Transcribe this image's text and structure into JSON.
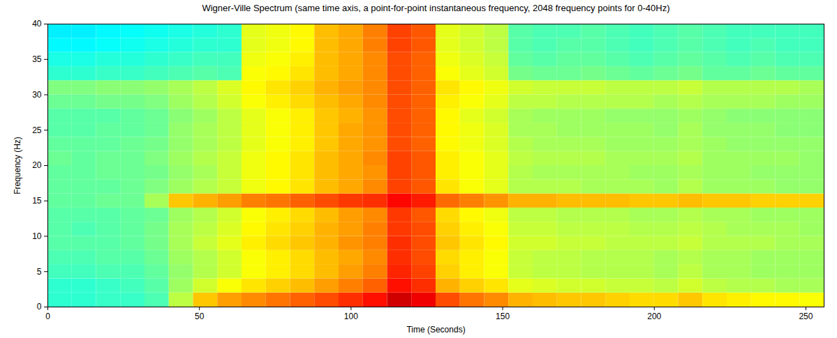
{
  "chart_data": {
    "type": "heatmap",
    "title": "Wigner-Ville Spectrum (same time axis, a point-for-point instantaneous frequency, 2048 frequency points for 0-40Hz)",
    "x_label": "Time (Seconds)",
    "y_label": "Frequency (Hz)",
    "xlim": [
      0,
      256
    ],
    "ylim": [
      0,
      40
    ],
    "xticks": [
      0,
      50,
      100,
      150,
      200,
      250
    ],
    "yticks": [
      0,
      5,
      10,
      15,
      20,
      25,
      30,
      35,
      40
    ],
    "grid": false,
    "x": [
      0,
      8,
      16,
      24,
      32,
      40,
      48,
      56,
      64,
      72,
      80,
      88,
      96,
      104,
      112,
      120,
      128,
      136,
      144,
      152,
      160,
      168,
      176,
      184,
      192,
      200,
      208,
      216,
      224,
      232,
      240,
      248
    ],
    "y": [
      0,
      2,
      4,
      6,
      8,
      10,
      12,
      14,
      16,
      18,
      20,
      22,
      24,
      26,
      28,
      30,
      32,
      34,
      36,
      38
    ],
    "zlim": [
      0,
      10
    ],
    "cells": [
      [
        4.2,
        4.2,
        4.3,
        4.3,
        4.5,
        5.6,
        6.8,
        7.2,
        7.4,
        7.6,
        7.8,
        8.0,
        8.3,
        8.6,
        9.2,
        8.9,
        8.0,
        7.6,
        7.4,
        7.0,
        6.9,
        6.8,
        6.8,
        6.7,
        6.6,
        6.6,
        6.8,
        6.5,
        6.4,
        6.3,
        6.3,
        6.2
      ],
      [
        4.2,
        4.2,
        4.3,
        4.4,
        4.6,
        5.3,
        5.8,
        6.2,
        6.5,
        6.7,
        6.9,
        7.2,
        7.5,
        7.8,
        8.6,
        8.3,
        7.0,
        6.7,
        6.5,
        6.0,
        5.9,
        5.8,
        5.8,
        5.7,
        5.7,
        5.6,
        5.8,
        5.6,
        5.5,
        5.5,
        5.4,
        5.4
      ],
      [
        4.4,
        4.4,
        4.5,
        4.5,
        4.7,
        5.2,
        5.5,
        5.8,
        6.2,
        6.4,
        6.6,
        6.9,
        7.2,
        7.5,
        8.4,
        8.1,
        6.7,
        6.4,
        6.2,
        5.7,
        5.6,
        5.6,
        5.5,
        5.5,
        5.5,
        5.4,
        5.6,
        5.4,
        5.4,
        5.3,
        5.3,
        5.3
      ],
      [
        4.5,
        4.5,
        4.6,
        4.6,
        4.8,
        5.3,
        5.5,
        5.8,
        6.2,
        6.4,
        6.6,
        6.9,
        7.1,
        7.4,
        8.3,
        8.0,
        6.6,
        6.4,
        6.2,
        5.7,
        5.6,
        5.6,
        5.5,
        5.5,
        5.5,
        5.4,
        5.5,
        5.4,
        5.4,
        5.3,
        5.3,
        5.3
      ],
      [
        4.6,
        4.6,
        4.6,
        4.7,
        4.9,
        5.4,
        5.7,
        6.0,
        6.4,
        6.6,
        6.8,
        7.0,
        7.3,
        7.5,
        8.3,
        8.0,
        6.8,
        6.5,
        6.3,
        5.8,
        5.8,
        5.7,
        5.7,
        5.6,
        5.6,
        5.6,
        5.7,
        5.5,
        5.5,
        5.5,
        5.4,
        5.4
      ],
      [
        4.6,
        4.5,
        4.6,
        4.7,
        4.9,
        5.4,
        5.6,
        5.9,
        6.3,
        6.5,
        6.7,
        7.0,
        7.2,
        7.5,
        8.2,
        8.0,
        6.7,
        6.4,
        6.2,
        5.7,
        5.7,
        5.6,
        5.6,
        5.6,
        5.5,
        5.5,
        5.6,
        5.5,
        5.4,
        5.4,
        5.4,
        5.3
      ],
      [
        4.6,
        4.6,
        4.6,
        4.7,
        4.8,
        5.3,
        5.5,
        5.8,
        6.2,
        6.4,
        6.6,
        6.9,
        7.2,
        7.4,
        8.2,
        7.9,
        6.6,
        6.3,
        6.1,
        5.6,
        5.6,
        5.5,
        5.5,
        5.5,
        5.4,
        5.4,
        5.5,
        5.4,
        5.4,
        5.3,
        5.3,
        5.3
      ],
      [
        4.7,
        4.7,
        4.8,
        4.8,
        5.4,
        6.8,
        7.0,
        7.2,
        7.5,
        7.6,
        7.8,
        8.0,
        8.2,
        8.3,
        8.7,
        8.5,
        7.7,
        7.5,
        7.3,
        7.0,
        7.0,
        6.9,
        6.9,
        6.9,
        6.8,
        6.8,
        6.9,
        6.8,
        6.8,
        6.7,
        6.7,
        6.7
      ],
      [
        4.7,
        4.7,
        4.7,
        4.8,
        5.0,
        5.3,
        5.5,
        5.7,
        6.1,
        6.3,
        6.5,
        6.9,
        7.1,
        7.4,
        8.1,
        7.9,
        6.5,
        6.2,
        6.0,
        5.5,
        5.5,
        5.5,
        5.4,
        5.4,
        5.4,
        5.3,
        5.5,
        5.3,
        5.3,
        5.3,
        5.2,
        5.2
      ],
      [
        4.7,
        4.7,
        4.8,
        4.8,
        4.9,
        5.2,
        5.4,
        5.7,
        6.1,
        6.3,
        6.5,
        6.9,
        7.1,
        7.3,
        8.1,
        7.9,
        6.4,
        6.2,
        6.0,
        5.5,
        5.4,
        5.4,
        5.4,
        5.4,
        5.3,
        5.3,
        5.4,
        5.3,
        5.3,
        5.2,
        5.2,
        5.2
      ],
      [
        4.8,
        4.7,
        4.8,
        4.8,
        5.0,
        5.3,
        5.5,
        5.7,
        6.1,
        6.3,
        6.5,
        6.9,
        7.1,
        7.4,
        8.1,
        7.9,
        6.4,
        6.2,
        6.0,
        5.6,
        5.5,
        5.5,
        5.5,
        5.4,
        5.4,
        5.4,
        5.5,
        5.3,
        5.3,
        5.3,
        5.3,
        5.2
      ],
      [
        4.7,
        4.7,
        4.7,
        4.8,
        4.9,
        5.2,
        5.4,
        5.6,
        6.0,
        6.2,
        6.4,
        6.8,
        7.1,
        7.3,
        8.0,
        7.8,
        6.3,
        6.1,
        5.9,
        5.5,
        5.4,
        5.4,
        5.4,
        5.3,
        5.3,
        5.3,
        5.4,
        5.3,
        5.2,
        5.2,
        5.2,
        5.2
      ],
      [
        4.6,
        4.6,
        4.7,
        4.7,
        4.8,
        5.2,
        5.4,
        5.6,
        6.0,
        6.2,
        6.4,
        6.8,
        7.1,
        7.3,
        8.0,
        7.8,
        6.3,
        6.1,
        5.9,
        5.4,
        5.4,
        5.3,
        5.3,
        5.3,
        5.3,
        5.2,
        5.4,
        5.2,
        5.2,
        5.2,
        5.1,
        5.1
      ],
      [
        4.6,
        4.6,
        4.6,
        4.7,
        4.8,
        5.1,
        5.3,
        5.6,
        6.0,
        6.2,
        6.4,
        6.8,
        7.0,
        7.3,
        8.0,
        7.8,
        6.3,
        6.0,
        5.8,
        5.4,
        5.3,
        5.3,
        5.3,
        5.2,
        5.2,
        5.2,
        5.3,
        5.2,
        5.1,
        5.1,
        5.1,
        5.1
      ],
      [
        4.8,
        4.8,
        4.9,
        4.9,
        5.0,
        5.3,
        5.5,
        5.8,
        6.2,
        6.4,
        6.6,
        6.9,
        7.1,
        7.4,
        8.0,
        7.8,
        6.4,
        6.2,
        6.0,
        5.6,
        5.6,
        5.5,
        5.5,
        5.5,
        5.5,
        5.4,
        5.5,
        5.4,
        5.4,
        5.4,
        5.3,
        5.3
      ],
      [
        5.0,
        5.0,
        5.1,
        5.1,
        5.2,
        5.4,
        5.6,
        5.9,
        6.3,
        6.5,
        6.7,
        7.0,
        7.2,
        7.4,
        8.0,
        7.8,
        6.5,
        6.3,
        6.1,
        5.8,
        5.7,
        5.7,
        5.7,
        5.6,
        5.6,
        5.6,
        5.7,
        5.5,
        5.5,
        5.5,
        5.5,
        5.4
      ],
      [
        4.2,
        4.2,
        4.3,
        4.3,
        4.4,
        4.5,
        4.6,
        4.5,
        6.2,
        6.3,
        6.5,
        6.9,
        7.1,
        7.4,
        8.0,
        7.8,
        6.2,
        6.0,
        5.8,
        4.9,
        4.8,
        4.8,
        4.9,
        4.8,
        4.7,
        4.8,
        4.9,
        4.7,
        4.7,
        4.8,
        4.7,
        4.7
      ],
      [
        4.0,
        4.0,
        4.1,
        4.1,
        4.2,
        4.3,
        4.4,
        4.4,
        6.1,
        6.2,
        6.4,
        6.9,
        7.1,
        7.4,
        8.0,
        7.8,
        6.1,
        5.9,
        5.7,
        4.7,
        4.6,
        4.7,
        4.7,
        4.6,
        4.5,
        4.6,
        4.7,
        4.6,
        4.5,
        4.6,
        4.5,
        4.5
      ],
      [
        3.7,
        3.7,
        3.8,
        3.9,
        4.0,
        4.1,
        4.2,
        4.2,
        6.0,
        6.1,
        6.3,
        6.9,
        7.1,
        7.5,
        8.1,
        7.9,
        6.0,
        5.8,
        5.6,
        4.6,
        4.5,
        4.6,
        4.6,
        4.5,
        4.4,
        4.5,
        4.6,
        4.5,
        4.4,
        4.5,
        4.4,
        4.4
      ],
      [
        3.6,
        3.6,
        3.7,
        3.8,
        3.9,
        4.0,
        4.1,
        4.2,
        6.0,
        6.1,
        6.3,
        6.9,
        7.1,
        7.5,
        8.1,
        7.9,
        6.0,
        5.8,
        5.6,
        4.6,
        4.5,
        4.5,
        4.6,
        4.5,
        4.4,
        4.5,
        4.6,
        4.5,
        4.4,
        4.4,
        4.4,
        4.4
      ]
    ]
  }
}
